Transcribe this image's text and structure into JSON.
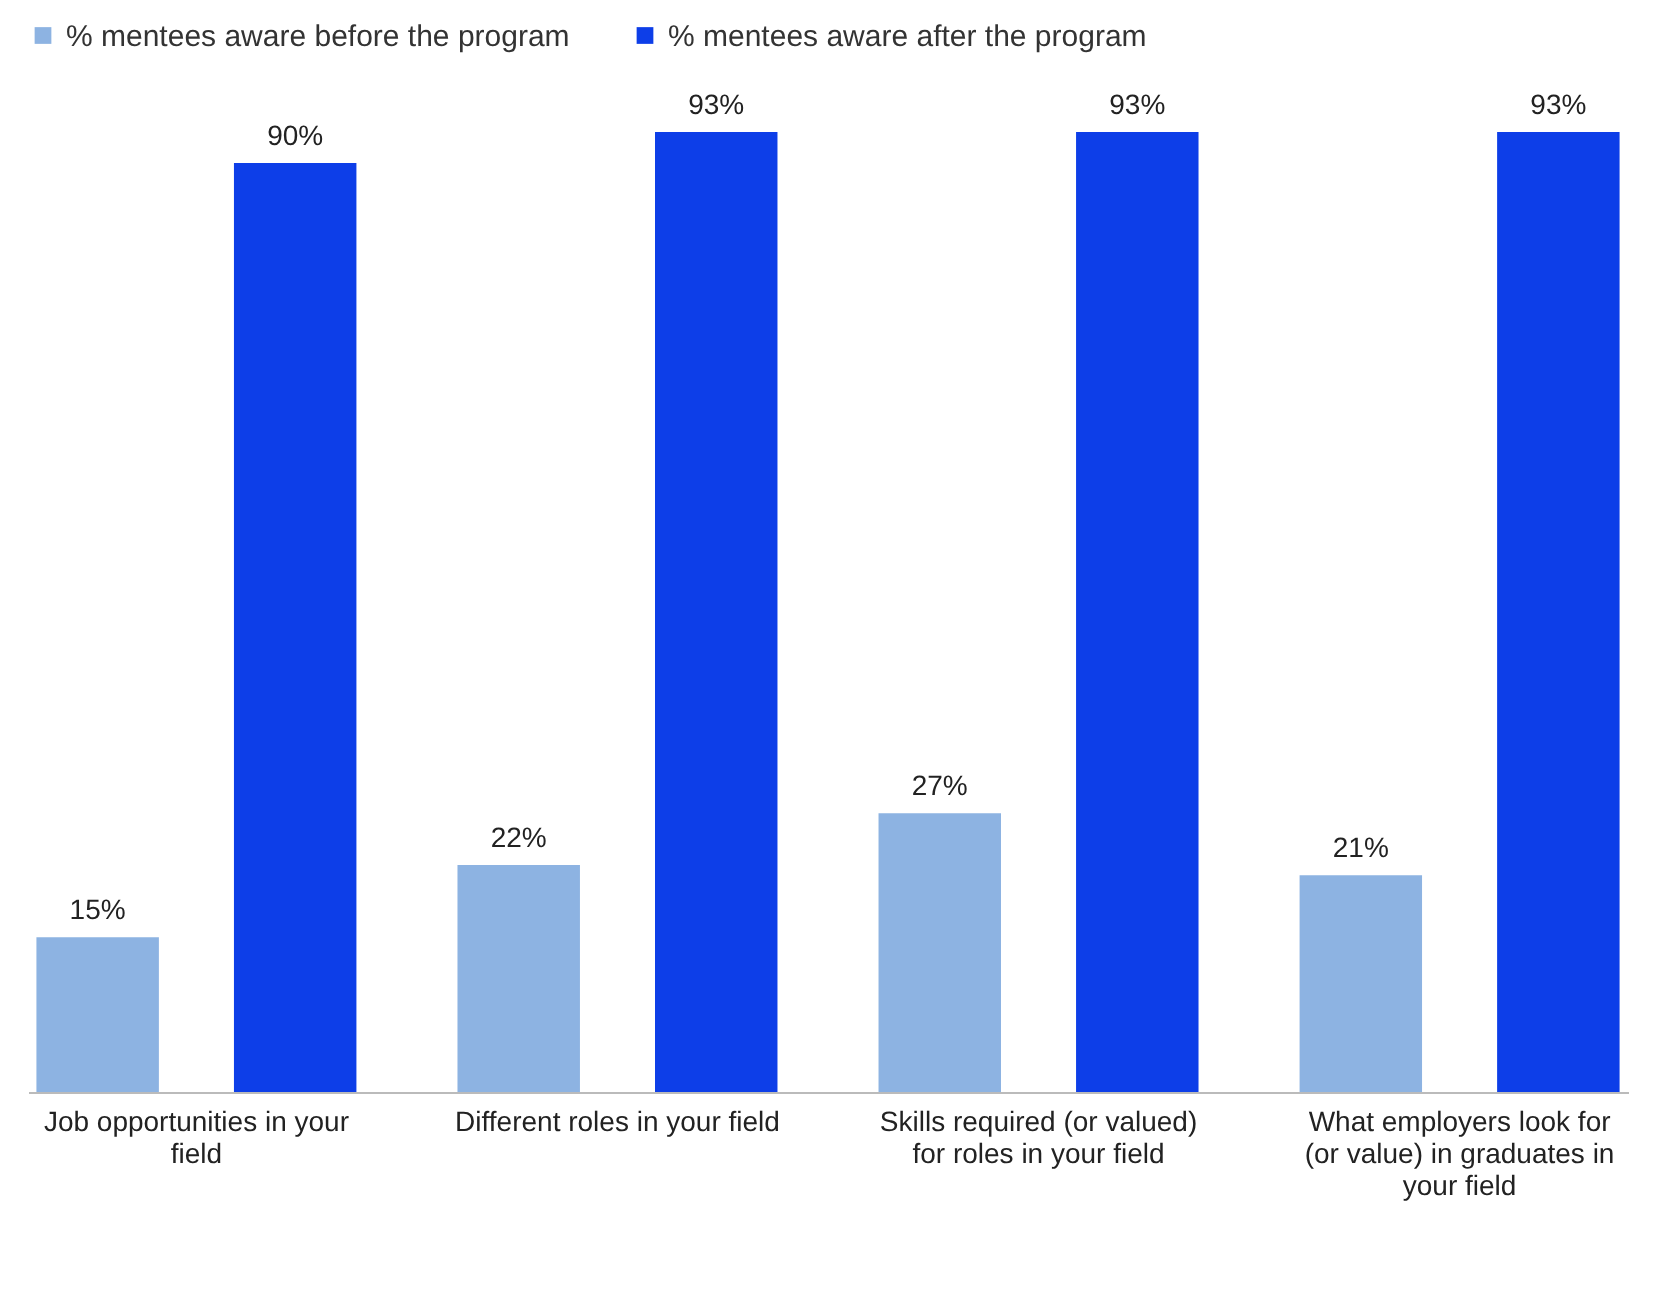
{
  "chart_data": {
    "type": "bar",
    "categories": [
      "Job opportunities in your field",
      "Different roles in your field",
      "Skills required (or valued) for roles in your field",
      "What employers look for (or value) in graduates in your field"
    ],
    "series": [
      {
        "name": "% mentees aware before the program",
        "color": "#8db3e2",
        "values": [
          15,
          22,
          27,
          21
        ],
        "value_labels": [
          "15%",
          "22%",
          "27%",
          "21%"
        ]
      },
      {
        "name": "% mentees aware after the program",
        "color": "#0d3ee8",
        "values": [
          90,
          93,
          93,
          93
        ],
        "value_labels": [
          "90%",
          "93%",
          "93%",
          "93%"
        ]
      }
    ],
    "legend": "top",
    "grid": false
  }
}
